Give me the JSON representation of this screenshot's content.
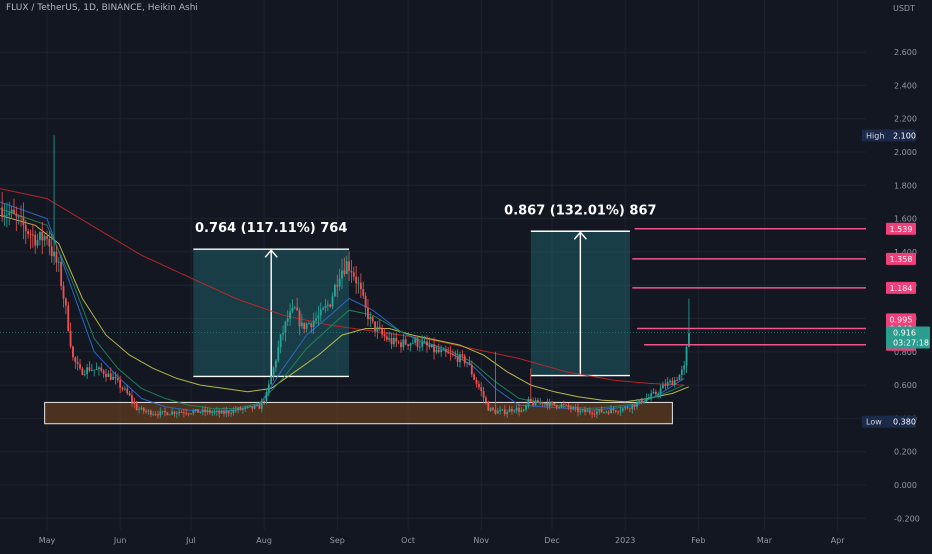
{
  "chart_data": {
    "type": "candlestick",
    "title": "FLUX / TetherUS, 1D, BINANCE, Heikin Ashi",
    "currency": "USDT",
    "y_range": [
      -0.26,
      3.0
    ],
    "y_ticks": [
      "2.600",
      "2.400",
      "2.200",
      "2.000",
      "1.800",
      "1.600",
      "1.400",
      "1.200",
      "1.000",
      "0.800",
      "0.600",
      "0.400",
      "0.200",
      "0.000",
      "-0.200"
    ],
    "x_ticks": [
      {
        "label": "May",
        "day": 0
      },
      {
        "label": "Jun",
        "day": 31
      },
      {
        "label": "Jul",
        "day": 61
      },
      {
        "label": "Aug",
        "day": 92
      },
      {
        "label": "Sep",
        "day": 123
      },
      {
        "label": "Oct",
        "day": 153
      },
      {
        "label": "Nov",
        "day": 184
      },
      {
        "label": "Dec",
        "day": 214
      },
      {
        "label": "2023",
        "day": 245
      },
      {
        "label": "Feb",
        "day": 276
      },
      {
        "label": "Mar",
        "day": 304
      },
      {
        "label": "Apr",
        "day": 335
      }
    ],
    "x_day_range": [
      -19.6,
      350
    ],
    "price_anchors": [
      [
        -20,
        1.68
      ],
      [
        -12,
        1.58
      ],
      [
        -4,
        1.47
      ],
      [
        0,
        1.5
      ],
      [
        2,
        1.4
      ],
      [
        5,
        1.3
      ],
      [
        8,
        1.05
      ],
      [
        11,
        0.76
      ],
      [
        14,
        0.68
      ],
      [
        18,
        0.7
      ],
      [
        24,
        0.68
      ],
      [
        28,
        0.64
      ],
      [
        32,
        0.58
      ],
      [
        35,
        0.53
      ],
      [
        38,
        0.46
      ],
      [
        42,
        0.44
      ],
      [
        48,
        0.43
      ],
      [
        55,
        0.44
      ],
      [
        62,
        0.44
      ],
      [
        68,
        0.44
      ],
      [
        74,
        0.43
      ],
      [
        80,
        0.45
      ],
      [
        86,
        0.46
      ],
      [
        90,
        0.47
      ],
      [
        93,
        0.54
      ],
      [
        96,
        0.7
      ],
      [
        99,
        0.88
      ],
      [
        102,
        1.0
      ],
      [
        105,
        1.05
      ],
      [
        108,
        0.95
      ],
      [
        112,
        0.98
      ],
      [
        116,
        1.02
      ],
      [
        120,
        1.1
      ],
      [
        124,
        1.28
      ],
      [
        127,
        1.33
      ],
      [
        129,
        1.3
      ],
      [
        132,
        1.2
      ],
      [
        135,
        1.05
      ],
      [
        138,
        0.96
      ],
      [
        142,
        0.9
      ],
      [
        146,
        0.86
      ],
      [
        150,
        0.85
      ],
      [
        155,
        0.86
      ],
      [
        160,
        0.84
      ],
      [
        165,
        0.8
      ],
      [
        170,
        0.78
      ],
      [
        175,
        0.76
      ],
      [
        178,
        0.74
      ],
      [
        181,
        0.64
      ],
      [
        184,
        0.56
      ],
      [
        187,
        0.46
      ],
      [
        190,
        0.44
      ],
      [
        194,
        0.44
      ],
      [
        198,
        0.46
      ],
      [
        202,
        0.44
      ],
      [
        204,
        0.5
      ],
      [
        206,
        0.49
      ],
      [
        210,
        0.5
      ],
      [
        214,
        0.48
      ],
      [
        218,
        0.48
      ],
      [
        222,
        0.46
      ],
      [
        226,
        0.44
      ],
      [
        230,
        0.44
      ],
      [
        235,
        0.44
      ],
      [
        240,
        0.45
      ],
      [
        245,
        0.46
      ],
      [
        250,
        0.49
      ],
      [
        254,
        0.52
      ],
      [
        258,
        0.55
      ],
      [
        262,
        0.6
      ],
      [
        266,
        0.63
      ],
      [
        268,
        0.66
      ],
      [
        270,
        0.7
      ],
      [
        272,
        0.92
      ]
    ],
    "max_day": 272,
    "spike_days": [
      [
        3,
        2.1
      ],
      [
        9,
        1.1
      ],
      [
        190,
        0.8
      ],
      [
        205,
        0.7
      ],
      [
        272,
        1.12
      ]
    ],
    "moving_averages": [
      {
        "name": "MA red",
        "color": "#c62828",
        "points": [
          [
            -20,
            1.78
          ],
          [
            0,
            1.72
          ],
          [
            20,
            1.55
          ],
          [
            40,
            1.38
          ],
          [
            60,
            1.25
          ],
          [
            80,
            1.12
          ],
          [
            100,
            1.02
          ],
          [
            120,
            0.96
          ],
          [
            140,
            0.92
          ],
          [
            160,
            0.88
          ],
          [
            180,
            0.82
          ],
          [
            200,
            0.76
          ],
          [
            220,
            0.68
          ],
          [
            240,
            0.63
          ],
          [
            255,
            0.61
          ],
          [
            270,
            0.6
          ]
        ]
      },
      {
        "name": "MA yellow",
        "color": "#c9c84a",
        "points": [
          [
            -20,
            1.62
          ],
          [
            -5,
            1.56
          ],
          [
            5,
            1.45
          ],
          [
            15,
            1.12
          ],
          [
            25,
            0.9
          ],
          [
            35,
            0.78
          ],
          [
            45,
            0.7
          ],
          [
            55,
            0.64
          ],
          [
            65,
            0.6
          ],
          [
            75,
            0.58
          ],
          [
            85,
            0.56
          ],
          [
            95,
            0.58
          ],
          [
            105,
            0.68
          ],
          [
            115,
            0.78
          ],
          [
            125,
            0.9
          ],
          [
            135,
            0.94
          ],
          [
            145,
            0.94
          ],
          [
            155,
            0.9
          ],
          [
            165,
            0.87
          ],
          [
            175,
            0.84
          ],
          [
            185,
            0.78
          ],
          [
            195,
            0.68
          ],
          [
            205,
            0.6
          ],
          [
            215,
            0.56
          ],
          [
            225,
            0.53
          ],
          [
            235,
            0.51
          ],
          [
            245,
            0.5
          ],
          [
            255,
            0.52
          ],
          [
            265,
            0.55
          ],
          [
            272,
            0.59
          ]
        ]
      },
      {
        "name": "MA blue",
        "color": "#2a6fd6",
        "points": [
          [
            -20,
            1.7
          ],
          [
            0,
            1.6
          ],
          [
            10,
            1.2
          ],
          [
            20,
            0.8
          ],
          [
            30,
            0.65
          ],
          [
            40,
            0.52
          ],
          [
            50,
            0.47
          ],
          [
            60,
            0.45
          ],
          [
            70,
            0.44
          ],
          [
            80,
            0.45
          ],
          [
            90,
            0.48
          ],
          [
            100,
            0.7
          ],
          [
            110,
            0.9
          ],
          [
            120,
            1.02
          ],
          [
            128,
            1.12
          ],
          [
            138,
            1.05
          ],
          [
            150,
            0.92
          ],
          [
            160,
            0.85
          ],
          [
            170,
            0.8
          ],
          [
            180,
            0.72
          ],
          [
            190,
            0.58
          ],
          [
            200,
            0.48
          ],
          [
            210,
            0.47
          ],
          [
            220,
            0.46
          ],
          [
            230,
            0.45
          ],
          [
            240,
            0.46
          ],
          [
            250,
            0.48
          ],
          [
            260,
            0.55
          ],
          [
            270,
            0.64
          ]
        ]
      },
      {
        "name": "MA green",
        "color": "#1f8a5c",
        "points": [
          [
            -20,
            1.66
          ],
          [
            0,
            1.56
          ],
          [
            10,
            1.25
          ],
          [
            20,
            0.88
          ],
          [
            30,
            0.7
          ],
          [
            40,
            0.58
          ],
          [
            50,
            0.52
          ],
          [
            60,
            0.48
          ],
          [
            70,
            0.46
          ],
          [
            80,
            0.46
          ],
          [
            90,
            0.49
          ],
          [
            100,
            0.64
          ],
          [
            110,
            0.82
          ],
          [
            120,
            0.95
          ],
          [
            128,
            1.05
          ],
          [
            138,
            1.02
          ],
          [
            150,
            0.92
          ],
          [
            160,
            0.86
          ],
          [
            170,
            0.81
          ],
          [
            180,
            0.74
          ],
          [
            190,
            0.62
          ],
          [
            200,
            0.52
          ],
          [
            210,
            0.49
          ],
          [
            220,
            0.47
          ],
          [
            230,
            0.46
          ],
          [
            240,
            0.47
          ],
          [
            250,
            0.49
          ],
          [
            260,
            0.54
          ],
          [
            270,
            0.6
          ]
        ]
      }
    ],
    "measure_boxes": [
      {
        "label": "0.764 (117.11%) 764",
        "x0": 62,
        "x1": 128,
        "low": 0.652,
        "high": 1.416
      },
      {
        "label": "0.867 (132.01%) 867",
        "x0": 205,
        "x1": 247,
        "low": 0.657,
        "high": 1.524
      }
    ],
    "support_zone": {
      "x0": -1,
      "x1": 265,
      "low": 0.368,
      "high": 0.496
    },
    "resistance_lines": [
      {
        "value": 1.539,
        "label": "1.539",
        "x0": 249
      },
      {
        "value": 1.358,
        "label": "1.358",
        "x0": 248
      },
      {
        "value": 1.184,
        "label": "1.184",
        "x0": 248
      },
      {
        "value": 0.94,
        "label": "0.940",
        "x0": 250
      },
      {
        "value": 0.842,
        "label": "0.842",
        "x0": 253
      }
    ],
    "high": {
      "label": "High",
      "value": "2.100"
    },
    "low": {
      "label": "Low",
      "value": "0.380"
    },
    "last_price": {
      "value": "0.916",
      "countdown": "03:27:18"
    },
    "current_high": {
      "value": "0.995"
    }
  }
}
